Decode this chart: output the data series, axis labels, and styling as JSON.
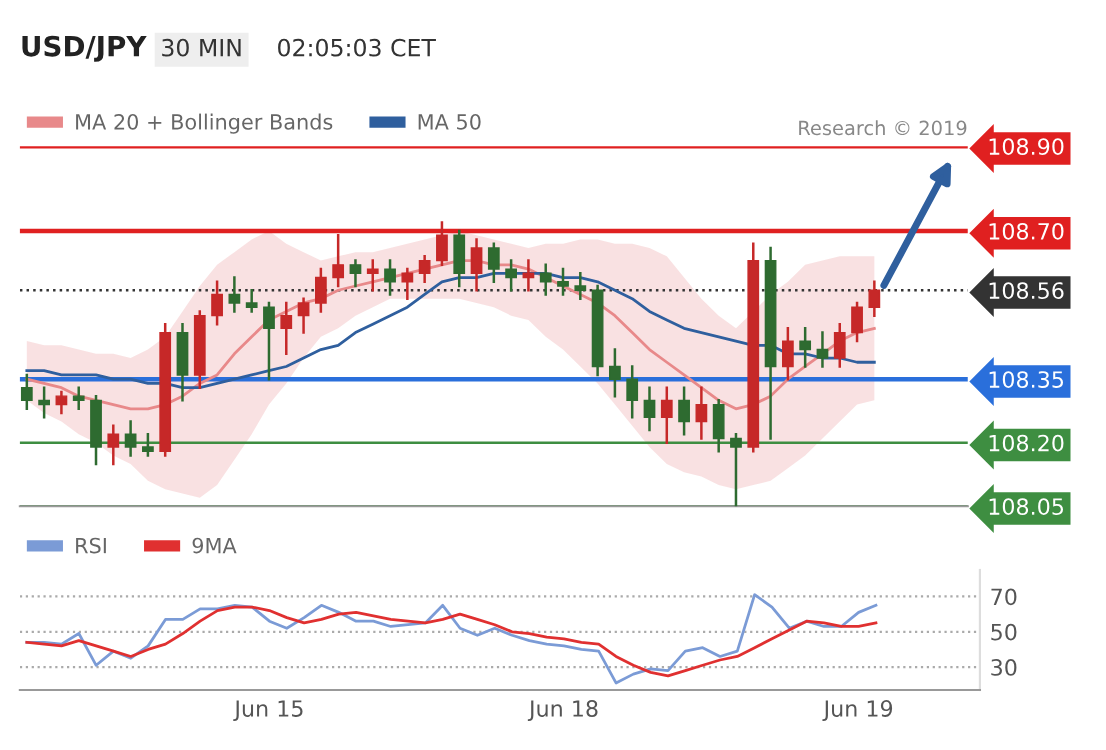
{
  "chart_data": [
    {
      "type": "candlestick",
      "title": "USD/JPY",
      "subtitle": "30 MIN",
      "annotations": [
        "02:05:03 CET",
        "Research © 2019"
      ],
      "categories": [
        null,
        null,
        null,
        null,
        null,
        null,
        null,
        null,
        null,
        null,
        null,
        null,
        null,
        null,
        null,
        null,
        null,
        null,
        null,
        null,
        null,
        null,
        null,
        null,
        null,
        null,
        null,
        null,
        null,
        null,
        null,
        null,
        null,
        null,
        null,
        null,
        null,
        null,
        null,
        null,
        null,
        null,
        null,
        null,
        null,
        null,
        null,
        null,
        null,
        null
      ],
      "ohlc": [
        [
          108.33,
          108.36,
          108.28,
          108.3
        ],
        [
          108.3,
          108.33,
          108.26,
          108.29
        ],
        [
          108.29,
          108.32,
          108.27,
          108.31
        ],
        [
          108.31,
          108.33,
          108.28,
          108.3
        ],
        [
          108.3,
          108.31,
          108.15,
          108.19
        ],
        [
          108.19,
          108.24,
          108.15,
          108.22
        ],
        [
          108.22,
          108.25,
          108.17,
          108.19
        ],
        [
          108.19,
          108.22,
          108.17,
          108.18
        ],
        [
          108.18,
          108.48,
          108.17,
          108.46
        ],
        [
          108.46,
          108.48,
          108.3,
          108.36
        ],
        [
          108.36,
          108.51,
          108.33,
          108.5
        ],
        [
          108.5,
          108.58,
          108.48,
          108.55
        ],
        [
          108.55,
          108.59,
          108.51,
          108.53
        ],
        [
          108.53,
          108.56,
          108.51,
          108.52
        ],
        [
          108.52,
          108.53,
          108.35,
          108.47
        ],
        [
          108.47,
          108.53,
          108.41,
          108.5
        ],
        [
          108.5,
          108.54,
          108.46,
          108.53
        ],
        [
          108.53,
          108.61,
          108.51,
          108.59
        ],
        [
          108.59,
          108.69,
          108.57,
          108.62
        ],
        [
          108.62,
          108.63,
          108.57,
          108.6
        ],
        [
          108.6,
          108.63,
          108.56,
          108.61
        ],
        [
          108.61,
          108.63,
          108.55,
          108.58
        ],
        [
          108.58,
          108.61,
          108.54,
          108.6
        ],
        [
          108.6,
          108.64,
          108.58,
          108.63
        ],
        [
          108.63,
          108.72,
          108.62,
          108.69
        ],
        [
          108.69,
          108.7,
          108.57,
          108.6
        ],
        [
          108.6,
          108.68,
          108.56,
          108.66
        ],
        [
          108.66,
          108.67,
          108.58,
          108.61
        ],
        [
          108.61,
          108.63,
          108.56,
          108.59
        ],
        [
          108.59,
          108.63,
          108.56,
          108.6
        ],
        [
          108.6,
          108.62,
          108.55,
          108.58
        ],
        [
          108.58,
          108.61,
          108.55,
          108.57
        ],
        [
          108.57,
          108.6,
          108.54,
          108.56
        ],
        [
          108.56,
          108.57,
          108.36,
          108.38
        ],
        [
          108.38,
          108.42,
          108.31,
          108.35
        ],
        [
          108.35,
          108.38,
          108.26,
          108.3
        ],
        [
          108.3,
          108.33,
          108.23,
          108.26
        ],
        [
          108.26,
          108.33,
          108.2,
          108.3
        ],
        [
          108.3,
          108.33,
          108.22,
          108.25
        ],
        [
          108.25,
          108.33,
          108.21,
          108.29
        ],
        [
          108.29,
          108.3,
          108.18,
          108.21
        ],
        [
          108.21,
          108.22,
          108.05,
          108.19
        ],
        [
          108.19,
          108.67,
          108.18,
          108.63
        ],
        [
          108.63,
          108.66,
          108.21,
          108.38
        ],
        [
          108.38,
          108.47,
          108.35,
          108.44
        ],
        [
          108.44,
          108.47,
          108.38,
          108.42
        ],
        [
          108.42,
          108.46,
          108.38,
          108.4
        ],
        [
          108.4,
          108.48,
          108.38,
          108.46
        ],
        [
          108.46,
          108.53,
          108.44,
          108.52
        ],
        [
          108.52,
          108.58,
          108.5,
          108.56
        ]
      ],
      "colors": [
        "#2e6b30",
        "#2e6b30",
        "#c62828",
        "#2e6b30",
        "#2e6b30",
        "#c62828",
        "#2e6b30",
        "#2e6b30",
        "#c62828",
        "#2e6b30",
        "#c62828",
        "#c62828",
        "#2e6b30",
        "#2e6b30",
        "#2e6b30",
        "#c62828",
        "#c62828",
        "#c62828",
        "#c62828",
        "#2e6b30",
        "#c62828",
        "#2e6b30",
        "#c62828",
        "#c62828",
        "#c62828",
        "#2e6b30",
        "#c62828",
        "#2e6b30",
        "#2e6b30",
        "#c62828",
        "#2e6b30",
        "#2e6b30",
        "#2e6b30",
        "#2e6b30",
        "#2e6b30",
        "#2e6b30",
        "#2e6b30",
        "#c62828",
        "#2e6b30",
        "#c62828",
        "#2e6b30",
        "#2e6b30",
        "#c62828",
        "#2e6b30",
        "#c62828",
        "#2e6b30",
        "#2e6b30",
        "#c62828",
        "#c62828",
        "#c62828"
      ],
      "series": [
        {
          "name": "MA 20 + Bollinger Bands",
          "type": "line",
          "color": "#e8898a",
          "values": [
            108.35,
            108.34,
            108.33,
            108.31,
            108.3,
            108.29,
            108.28,
            108.28,
            108.29,
            108.31,
            108.34,
            108.36,
            108.41,
            108.45,
            108.49,
            108.51,
            108.53,
            108.54,
            108.56,
            108.57,
            108.58,
            108.59,
            108.6,
            108.61,
            108.62,
            108.63,
            108.63,
            108.62,
            108.62,
            108.61,
            108.59,
            108.57,
            108.55,
            108.53,
            108.5,
            108.46,
            108.42,
            108.39,
            108.36,
            108.33,
            108.3,
            108.28,
            108.29,
            108.31,
            108.35,
            108.38,
            108.41,
            108.44,
            108.46,
            108.47
          ],
          "upper": [
            108.44,
            108.43,
            108.43,
            108.42,
            108.41,
            108.41,
            108.4,
            108.42,
            108.45,
            108.51,
            108.57,
            108.62,
            108.65,
            108.68,
            108.7,
            108.67,
            108.65,
            108.63,
            108.64,
            108.65,
            108.65,
            108.66,
            108.67,
            108.68,
            108.69,
            108.7,
            108.69,
            108.68,
            108.67,
            108.66,
            108.67,
            108.67,
            108.68,
            108.68,
            108.67,
            108.67,
            108.66,
            108.64,
            108.59,
            108.54,
            108.5,
            108.47,
            108.51,
            108.55,
            108.58,
            108.62,
            108.63,
            108.64,
            108.64,
            108.64
          ],
          "lower": [
            108.3,
            108.27,
            108.25,
            108.22,
            108.2,
            108.17,
            108.15,
            108.11,
            108.09,
            108.08,
            108.07,
            108.1,
            108.16,
            108.22,
            108.29,
            108.34,
            108.4,
            108.45,
            108.47,
            108.5,
            108.52,
            108.54,
            108.54,
            108.54,
            108.54,
            108.54,
            108.53,
            108.52,
            108.5,
            108.49,
            108.45,
            108.42,
            108.38,
            108.34,
            108.29,
            108.24,
            108.19,
            108.15,
            108.13,
            108.12,
            108.1,
            108.09,
            108.1,
            108.11,
            108.14,
            108.17,
            108.21,
            108.25,
            108.29,
            108.3
          ]
        },
        {
          "name": "MA 50",
          "type": "line",
          "color": "#2f5f9e",
          "values": [
            108.37,
            108.37,
            108.36,
            108.36,
            108.36,
            108.35,
            108.35,
            108.34,
            108.34,
            108.33,
            108.33,
            108.34,
            108.35,
            108.36,
            108.37,
            108.38,
            108.4,
            108.42,
            108.43,
            108.46,
            108.48,
            108.5,
            108.52,
            108.55,
            108.58,
            108.59,
            108.59,
            108.6,
            108.6,
            108.6,
            108.6,
            108.59,
            108.59,
            108.58,
            108.56,
            108.54,
            108.51,
            108.49,
            108.47,
            108.46,
            108.45,
            108.44,
            108.43,
            108.43,
            108.41,
            108.41,
            108.4,
            108.4,
            108.39,
            108.39
          ]
        }
      ],
      "ylim": [
        108.05,
        108.9
      ],
      "yticks": [
        {
          "value": 108.05,
          "label": "108.05"
        },
        {
          "value": 108.2,
          "label": "108.20"
        },
        {
          "value": 108.35,
          "label": "108.35"
        },
        {
          "value": 108.56,
          "label": "108.56"
        },
        {
          "value": 108.7,
          "label": "108.70"
        },
        {
          "value": 108.9,
          "label": "108.90"
        }
      ],
      "ref_lines": [
        {
          "axis": "y",
          "value": 108.9,
          "color": "#e02020",
          "line_style": "solid"
        },
        {
          "axis": "y",
          "value": 108.7,
          "color": "#e02020",
          "line_style": "solid"
        },
        {
          "axis": "y",
          "value": 108.56,
          "color": "#333333",
          "line_style": "dotted"
        },
        {
          "axis": "y",
          "value": 108.35,
          "color": "#2a6fdb",
          "line_style": "solid"
        },
        {
          "axis": "y",
          "value": 108.2,
          "color": "#3e8e41",
          "line_style": "solid"
        },
        {
          "axis": "y",
          "value": 108.05,
          "color": "#3e8e41",
          "line_style": "solid"
        }
      ],
      "legend": "top left",
      "tick_labels": "y"
    },
    {
      "type": "line",
      "marker": "none",
      "legend": "top left",
      "grid": "y",
      "tick_labels": "xy",
      "categories": [
        null,
        null,
        null,
        null,
        null,
        null,
        null,
        null,
        null,
        null,
        null,
        null,
        null,
        null,
        "Jun 15",
        null,
        null,
        null,
        null,
        null,
        null,
        null,
        null,
        null,
        null,
        null,
        null,
        null,
        null,
        null,
        null,
        "Jun 18",
        null,
        null,
        null,
        null,
        null,
        null,
        null,
        null,
        null,
        null,
        null,
        null,
        null,
        null,
        null,
        null,
        "Jun 19",
        null
      ],
      "series": [
        {
          "name": "RSI",
          "type": "line",
          "color": "#7b9bd6",
          "values": [
            44,
            44,
            43,
            49,
            31,
            39,
            35,
            42,
            57,
            57,
            63,
            63,
            65,
            64,
            56,
            52,
            58,
            65,
            61,
            56,
            56,
            53,
            54,
            55,
            65,
            52,
            48,
            52,
            48,
            45,
            43,
            42,
            40,
            39,
            21,
            26,
            29,
            28,
            39,
            41,
            36,
            39,
            71,
            64,
            52,
            56,
            53,
            53,
            61,
            65
          ]
        },
        {
          "name": "9MA",
          "type": "line",
          "color": "#e03030",
          "values": [
            44,
            43,
            42,
            45,
            42,
            39,
            36,
            40,
            43,
            49,
            56,
            62,
            64,
            64,
            62,
            58,
            55,
            57,
            60,
            61,
            59,
            57,
            56,
            55,
            57,
            60,
            57,
            54,
            50,
            49,
            47,
            46,
            44,
            43,
            36,
            31,
            27,
            25,
            28,
            31,
            34,
            36,
            41,
            46,
            51,
            56,
            55,
            53,
            53,
            55
          ]
        }
      ],
      "ylim": [
        17,
        85
      ],
      "yticks": [
        30,
        50,
        70
      ]
    }
  ]
}
